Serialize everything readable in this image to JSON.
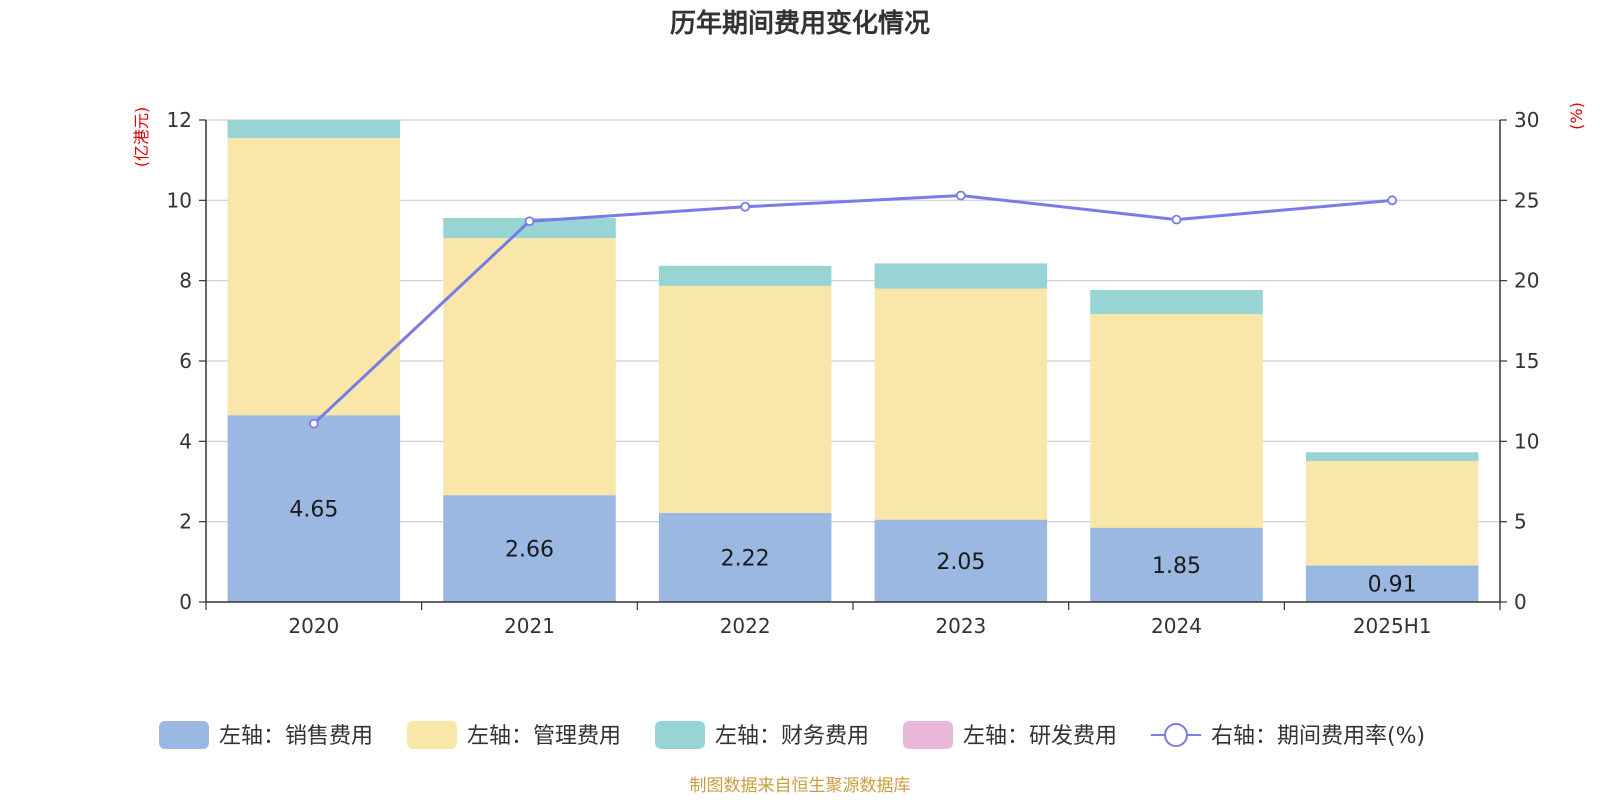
{
  "title": "历年期间费用变化情况",
  "source": "制图数据来自恒生聚源数据库",
  "chart_data": {
    "type": "bar",
    "stacked": true,
    "categories": [
      "2020",
      "2021",
      "2022",
      "2023",
      "2024",
      "2025H1"
    ],
    "left_axis": {
      "unit": "(亿港元)",
      "ylim": [
        0,
        12
      ],
      "ticks": [
        "0",
        "2",
        "4",
        "6",
        "8",
        "10",
        "12"
      ]
    },
    "right_axis": {
      "unit": "(%)",
      "ylim": [
        0,
        30
      ],
      "ticks": [
        "0",
        "5",
        "10",
        "15",
        "20",
        "25",
        "30"
      ]
    },
    "grid": true,
    "legend_position": "bottom",
    "series": [
      {
        "name": "左轴：销售费用",
        "type": "bar",
        "axis": "left",
        "color": "#9bb8e2",
        "values": [
          4.65,
          2.66,
          2.22,
          2.05,
          1.85,
          0.91
        ],
        "labels": [
          "4.65",
          "2.66",
          "2.22",
          "2.05",
          "1.85",
          "0.91"
        ]
      },
      {
        "name": "左轴：管理费用",
        "type": "bar",
        "axis": "left",
        "color": "#f8e7a8",
        "values": [
          6.9,
          6.4,
          5.65,
          5.75,
          5.32,
          2.6
        ]
      },
      {
        "name": "左轴：财务费用",
        "type": "bar",
        "axis": "left",
        "color": "#98d4d4",
        "values": [
          0.45,
          0.5,
          0.5,
          0.63,
          0.6,
          0.22
        ]
      },
      {
        "name": "左轴：研发费用",
        "type": "bar",
        "axis": "left",
        "color": "#e8b8d8",
        "values": [
          0,
          0,
          0,
          0,
          0,
          0
        ]
      },
      {
        "name": "右轴：期间费用率(%)",
        "type": "line",
        "axis": "right",
        "color": "#7b7be8",
        "values": [
          11.1,
          23.7,
          24.6,
          25.3,
          23.8,
          25.0
        ]
      }
    ]
  }
}
